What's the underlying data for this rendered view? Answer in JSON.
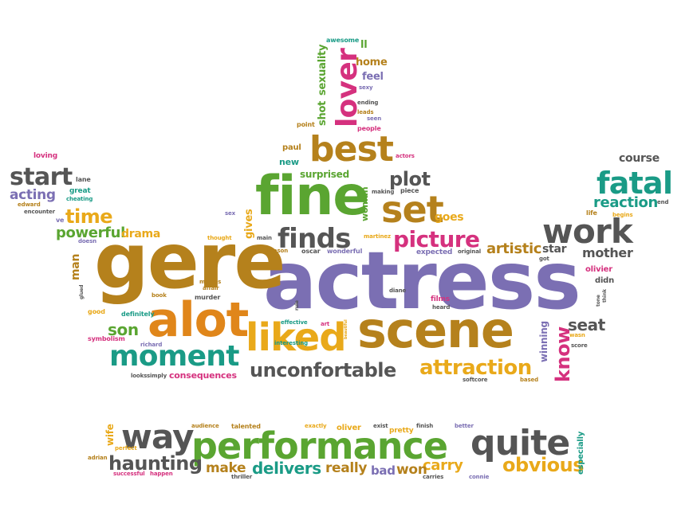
{
  "palette": {
    "olive": "#b5811c",
    "purple": "#7b6fb3",
    "orange": "#e0861a",
    "gold": "#e9a91a",
    "green": "#5aa531",
    "teal": "#1a9b86",
    "magenta": "#d5317e",
    "gray": "#555555"
  },
  "words": [
    {
      "text": "actress",
      "color": "purple"
    },
    {
      "text": "gere",
      "color": "olive"
    },
    {
      "text": "fine",
      "color": "green"
    },
    {
      "text": "alot",
      "color": "orange"
    },
    {
      "text": "scene",
      "color": "olive"
    },
    {
      "text": "liked",
      "color": "gold"
    },
    {
      "text": "performance",
      "color": "green"
    },
    {
      "text": "best",
      "color": "olive"
    },
    {
      "text": "quite",
      "color": "gray"
    },
    {
      "text": "lover",
      "color": "magenta"
    },
    {
      "text": "set",
      "color": "olive"
    },
    {
      "text": "work",
      "color": "gray"
    },
    {
      "text": "way",
      "color": "gray"
    },
    {
      "text": "moment",
      "color": "teal"
    },
    {
      "text": "fatal",
      "color": "teal"
    },
    {
      "text": "finds",
      "color": "gray"
    },
    {
      "text": "picture",
      "color": "magenta"
    },
    {
      "text": "attraction",
      "color": "gold"
    },
    {
      "text": "unconfortable",
      "color": "gray"
    },
    {
      "text": "start",
      "color": "gray"
    },
    {
      "text": "time",
      "color": "gold"
    },
    {
      "text": "obvious",
      "color": "gold"
    },
    {
      "text": "haunting",
      "color": "gray"
    },
    {
      "text": "delivers",
      "color": "teal"
    },
    {
      "text": "know",
      "color": "magenta"
    },
    {
      "text": "plot",
      "color": "gray"
    },
    {
      "text": "reaction",
      "color": "teal"
    },
    {
      "text": "acting",
      "color": "purple"
    },
    {
      "text": "powerful",
      "color": "green"
    },
    {
      "text": "drama",
      "color": "gold"
    },
    {
      "text": "son",
      "color": "green"
    },
    {
      "text": "artistic",
      "color": "olive"
    },
    {
      "text": "mother",
      "color": "gray"
    },
    {
      "text": "carry",
      "color": "gold"
    },
    {
      "text": "really",
      "color": "olive"
    },
    {
      "text": "make",
      "color": "olive"
    },
    {
      "text": "bad",
      "color": "purple"
    },
    {
      "text": "won",
      "color": "olive"
    },
    {
      "text": "seat",
      "color": "gray"
    },
    {
      "text": "course",
      "color": "gray"
    },
    {
      "text": "surprised",
      "color": "green"
    },
    {
      "text": "man",
      "color": "olive"
    },
    {
      "text": "goes",
      "color": "gold"
    },
    {
      "text": "star",
      "color": "gray"
    },
    {
      "text": "winning",
      "color": "purple"
    },
    {
      "text": "consequences",
      "color": "magenta"
    },
    {
      "text": "gives",
      "color": "gold"
    },
    {
      "text": "woman",
      "color": "green"
    },
    {
      "text": "sexuality",
      "color": "green"
    },
    {
      "text": "shot",
      "color": "green"
    },
    {
      "text": "home",
      "color": "olive"
    },
    {
      "text": "feel",
      "color": "purple"
    },
    {
      "text": "new",
      "color": "teal"
    },
    {
      "text": "paul",
      "color": "olive"
    },
    {
      "text": "wife",
      "color": "gold"
    },
    {
      "text": "oliver",
      "color": "gold"
    },
    {
      "text": "especially",
      "color": "teal"
    },
    {
      "text": "ll",
      "color": "green"
    },
    {
      "text": "films",
      "color": "magenta"
    },
    {
      "text": "olivier",
      "color": "magenta"
    },
    {
      "text": "didn",
      "color": "gray"
    },
    {
      "text": "awesome",
      "color": "teal"
    },
    {
      "text": "sexy",
      "color": "purple"
    },
    {
      "text": "leads",
      "color": "olive"
    },
    {
      "text": "seen",
      "color": "purple"
    },
    {
      "text": "point",
      "color": "olive"
    },
    {
      "text": "people",
      "color": "magenta"
    },
    {
      "text": "actors",
      "color": "magenta"
    },
    {
      "text": "loving",
      "color": "magenta"
    },
    {
      "text": "lane",
      "color": "gray"
    },
    {
      "text": "great",
      "color": "teal"
    },
    {
      "text": "cheating",
      "color": "teal"
    },
    {
      "text": "edward",
      "color": "olive"
    },
    {
      "text": "encounter",
      "color": "gray"
    },
    {
      "text": "ve",
      "color": "purple"
    },
    {
      "text": "making",
      "color": "gray"
    },
    {
      "text": "piece",
      "color": "gray"
    },
    {
      "text": "sex",
      "color": "purple"
    },
    {
      "text": "thought",
      "color": "gold"
    },
    {
      "text": "main",
      "color": "gray"
    },
    {
      "text": "martinez",
      "color": "gold"
    },
    {
      "text": "reason",
      "color": "olive"
    },
    {
      "text": "oscar",
      "color": "gray"
    },
    {
      "text": "wonderful",
      "color": "purple"
    },
    {
      "text": "expected",
      "color": "purple"
    },
    {
      "text": "original",
      "color": "gray"
    },
    {
      "text": "got",
      "color": "gray"
    },
    {
      "text": "life",
      "color": "olive"
    },
    {
      "text": "begins",
      "color": "gold"
    },
    {
      "text": "end",
      "color": "gray"
    },
    {
      "text": "doesn",
      "color": "purple"
    },
    {
      "text": "movies",
      "color": "olive"
    },
    {
      "text": "affair",
      "color": "olive"
    },
    {
      "text": "book",
      "color": "olive"
    },
    {
      "text": "murder",
      "color": "gray"
    },
    {
      "text": "good",
      "color": "gold"
    },
    {
      "text": "definitely",
      "color": "teal"
    },
    {
      "text": "glued",
      "color": "gray"
    },
    {
      "text": "rule",
      "color": "gray"
    },
    {
      "text": "diane",
      "color": "gray"
    },
    {
      "text": "heard",
      "color": "gray"
    },
    {
      "text": "effective",
      "color": "teal"
    },
    {
      "text": "art",
      "color": "magenta"
    },
    {
      "text": "beautiful",
      "color": "gold"
    },
    {
      "text": "symbolism",
      "color": "magenta"
    },
    {
      "text": "richard",
      "color": "purple"
    },
    {
      "text": "interesting",
      "color": "teal"
    },
    {
      "text": "looks",
      "color": "gray"
    },
    {
      "text": "simply",
      "color": "gray"
    },
    {
      "text": "wasn",
      "color": "gold"
    },
    {
      "text": "score",
      "color": "gray"
    },
    {
      "text": "tone",
      "color": "gray"
    },
    {
      "text": "think",
      "color": "gray"
    },
    {
      "text": "softcore",
      "color": "gray"
    },
    {
      "text": "based",
      "color": "olive"
    },
    {
      "text": "audience",
      "color": "olive"
    },
    {
      "text": "talented",
      "color": "olive"
    },
    {
      "text": "exactly",
      "color": "gold"
    },
    {
      "text": "exist",
      "color": "gray"
    },
    {
      "text": "pretty",
      "color": "gold"
    },
    {
      "text": "finish",
      "color": "gray"
    },
    {
      "text": "better",
      "color": "purple"
    },
    {
      "text": "perfect",
      "color": "gold"
    },
    {
      "text": "adrian",
      "color": "olive"
    },
    {
      "text": "successful",
      "color": "magenta"
    },
    {
      "text": "happen",
      "color": "magenta"
    },
    {
      "text": "thriller",
      "color": "gray"
    },
    {
      "text": "carries",
      "color": "gray"
    },
    {
      "text": "connie",
      "color": "purple"
    },
    {
      "text": "ending",
      "color": "gray"
    }
  ]
}
